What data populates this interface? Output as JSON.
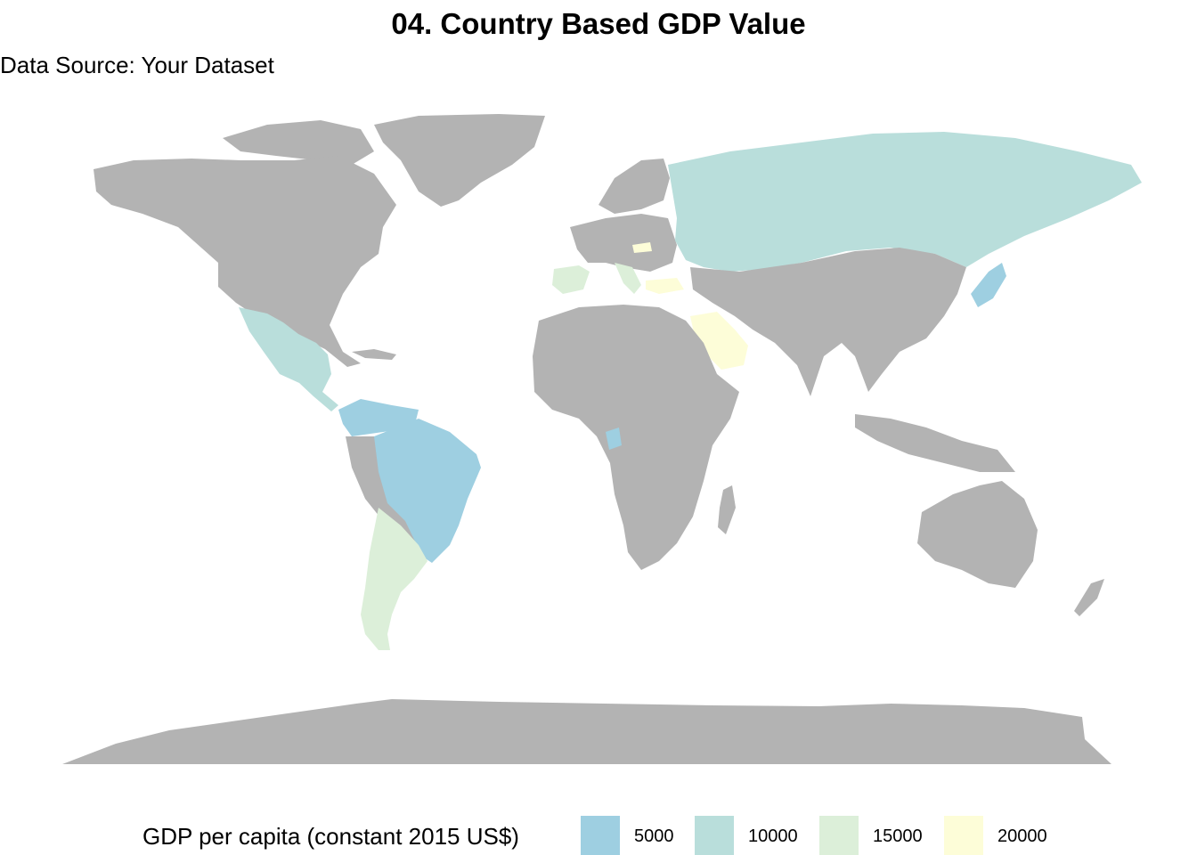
{
  "title": "04. Country Based GDP Value",
  "subtitle": "Data Source: Your Dataset",
  "colors": {
    "no_data": "#b3b3b3",
    "bin_5000": "#9ecfe1",
    "bin_10000": "#b9dedb",
    "bin_15000": "#dcefd9",
    "bin_20000": "#fdfdd8"
  },
  "legend": {
    "title": "GDP per capita (constant 2015 US$)",
    "items": [
      {
        "label": "5000",
        "color": "#9ecfe1"
      },
      {
        "label": "10000",
        "color": "#b9dedb"
      },
      {
        "label": "15000",
        "color": "#dcefd9"
      },
      {
        "label": "20000",
        "color": "#fdfdd8"
      }
    ]
  }
}
